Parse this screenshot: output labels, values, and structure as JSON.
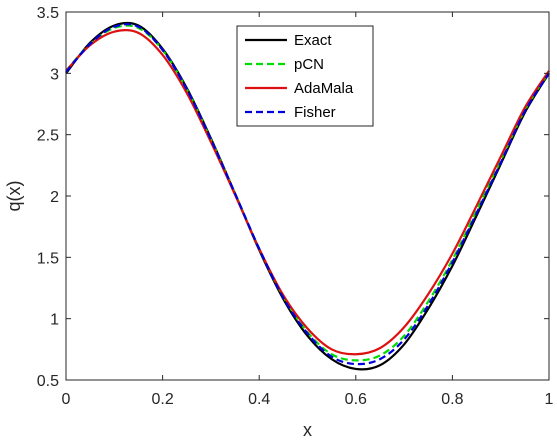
{
  "chart_data": {
    "type": "line",
    "xlabel": "x",
    "ylabel": "q(x)",
    "xlim": [
      0,
      1
    ],
    "ylim": [
      0.5,
      3.5
    ],
    "xticks": [
      0,
      0.2,
      0.4,
      0.6,
      0.8,
      1
    ],
    "xtick_labels": [
      "0",
      "0.2",
      "0.4",
      "0.6",
      "0.8",
      "1"
    ],
    "yticks": [
      0.5,
      1,
      1.5,
      2,
      2.5,
      3,
      3.5
    ],
    "ytick_labels": [
      "0.5",
      "1",
      "1.5",
      "2",
      "2.5",
      "3",
      "3.5"
    ],
    "grid": false,
    "legend_position": "top-center",
    "x": [
      0,
      0.05,
      0.1,
      0.15,
      0.2,
      0.25,
      0.3,
      0.35,
      0.4,
      0.45,
      0.5,
      0.55,
      0.6,
      0.65,
      0.7,
      0.75,
      0.8,
      0.85,
      0.9,
      0.95,
      1.0
    ],
    "series": [
      {
        "name": "Exact",
        "color": "#000000",
        "dash": "solid",
        "values": [
          3.0,
          3.25,
          3.39,
          3.39,
          3.2,
          2.88,
          2.47,
          2.02,
          1.56,
          1.16,
          0.86,
          0.67,
          0.59,
          0.62,
          0.79,
          1.08,
          1.43,
          1.84,
          2.26,
          2.68,
          3.0
        ]
      },
      {
        "name": "pCN",
        "color": "#00dd00",
        "dash": "dashed",
        "values": [
          3.02,
          3.24,
          3.37,
          3.37,
          3.19,
          2.87,
          2.46,
          2.02,
          1.57,
          1.18,
          0.89,
          0.71,
          0.66,
          0.7,
          0.86,
          1.14,
          1.48,
          1.88,
          2.29,
          2.7,
          3.01
        ]
      },
      {
        "name": "AdaMala",
        "color": "#dd1111",
        "dash": "solid",
        "values": [
          3.02,
          3.23,
          3.34,
          3.33,
          3.15,
          2.84,
          2.44,
          2.01,
          1.57,
          1.19,
          0.92,
          0.75,
          0.71,
          0.76,
          0.93,
          1.2,
          1.53,
          1.92,
          2.32,
          2.72,
          3.02
        ]
      },
      {
        "name": "Fisher",
        "color": "#0000dd",
        "dash": "dashed",
        "values": [
          3.01,
          3.24,
          3.38,
          3.38,
          3.19,
          2.87,
          2.46,
          2.02,
          1.57,
          1.17,
          0.88,
          0.69,
          0.63,
          0.67,
          0.83,
          1.11,
          1.46,
          1.86,
          2.27,
          2.69,
          3.0
        ]
      }
    ]
  }
}
